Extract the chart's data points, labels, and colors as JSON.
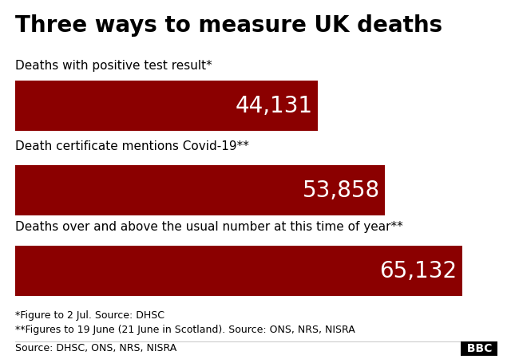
{
  "title": "Three ways to measure UK deaths",
  "bar_color": "#8B0000",
  "background_color": "#ffffff",
  "bars": [
    {
      "label": "Deaths with positive test result*",
      "value": 44131,
      "display": "44,131"
    },
    {
      "label": "Death certificate mentions Covid-19**",
      "value": 53858,
      "display": "53,858"
    },
    {
      "label": "Deaths over and above the usual number at this time of year**",
      "value": 65132,
      "display": "65,132"
    }
  ],
  "max_value": 70000,
  "footnote1": "*Figure to 2 Jul. Source: DHSC",
  "footnote2": "**Figures to 19 June (21 June in Scotland). Source: ONS, NRS, NISRA",
  "source": "Source: DHSC, ONS, NRS, NISRA",
  "bbc_logo": " BBC ",
  "title_fontsize": 20,
  "label_fontsize": 11,
  "value_fontsize": 20,
  "footnote_fontsize": 9,
  "source_fontsize": 9
}
